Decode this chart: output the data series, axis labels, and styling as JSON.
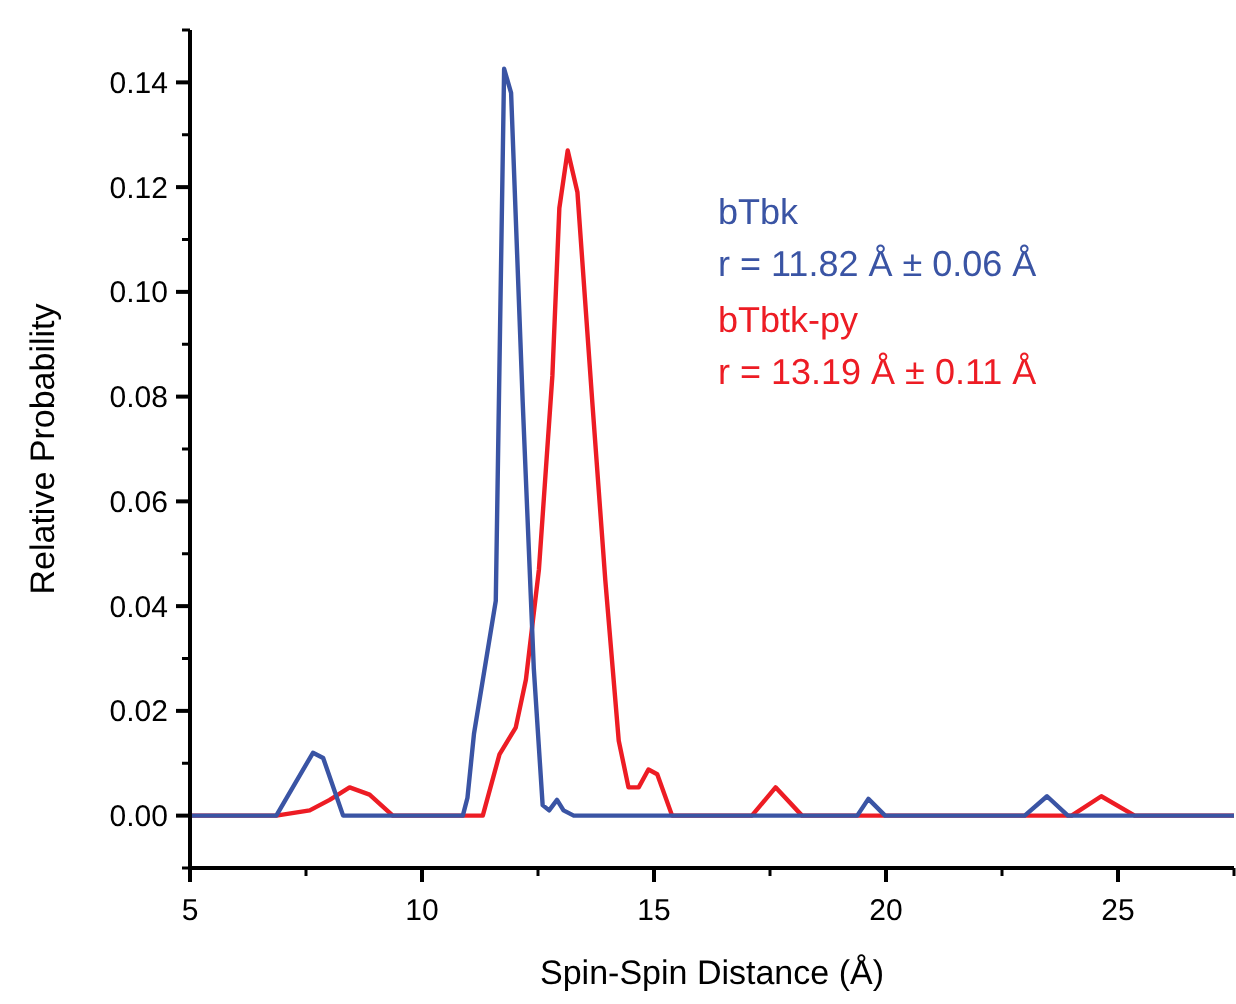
{
  "chart_data": {
    "type": "line",
    "xlabel": "Spin-Spin Distance (Å)",
    "ylabel": "Relative Probability",
    "xlim": [
      5,
      27.5
    ],
    "xticks": [
      5,
      10,
      15,
      20,
      25
    ],
    "ylim": [
      -0.01,
      0.15
    ],
    "yticks": [
      {
        "value": 0,
        "label": "0.00"
      },
      {
        "value": 0.02,
        "label": "0.02"
      },
      {
        "value": 0.04,
        "label": "0.04"
      },
      {
        "value": 0.06,
        "label": "0.06"
      },
      {
        "value": 0.08,
        "label": "0.08"
      },
      {
        "value": 0.1,
        "label": "0.10"
      },
      {
        "value": 0.12,
        "label": "0.12"
      },
      {
        "value": 0.14,
        "label": "0.14"
      }
    ],
    "grid": false,
    "marker": "none",
    "line_style": "solid",
    "annotations": [
      "r = 11.82 Å ± 0.06 Å",
      "r = 13.19 Å ± 0.11 Å"
    ],
    "series": [
      {
        "name": "bTbtk-py",
        "color": "#ed1c24",
        "x": [
          5,
          6.86,
          7.58,
          8.01,
          8.44,
          8.87,
          9.37,
          11.31,
          11.67,
          12.02,
          12.24,
          12.52,
          12.81,
          12.96,
          13.14,
          13.35,
          13.67,
          13.95,
          14.24,
          14.45,
          14.67,
          14.88,
          15.07,
          15.39,
          17.11,
          17.62,
          18.19,
          24.0,
          24.64,
          25.36,
          27.5
        ],
        "values": [
          0,
          0,
          0.001,
          0.003,
          0.0054,
          0.004,
          0,
          0,
          0.0117,
          0.0168,
          0.026,
          0.047,
          0.084,
          0.116,
          0.127,
          0.119,
          0.079,
          0.045,
          0.0143,
          0.0054,
          0.0054,
          0.0088,
          0.0079,
          0,
          0,
          0.0054,
          0,
          0,
          0.0037,
          0,
          0
        ]
      },
      {
        "name": "bTbk",
        "color": "#3a54a4",
        "x": [
          5,
          6.86,
          7.65,
          7.87,
          8.3,
          10.88,
          10.98,
          11.12,
          11.59,
          11.77,
          11.92,
          12.17,
          12.41,
          12.6,
          12.74,
          12.91,
          13.05,
          13.27,
          19.38,
          19.62,
          19.98,
          22.99,
          23.47,
          23.92,
          27.5
        ],
        "values": [
          0,
          0,
          0.012,
          0.011,
          0,
          0,
          0.0034,
          0.0156,
          0.041,
          0.1426,
          0.138,
          0.079,
          0.028,
          0.002,
          0.001,
          0.003,
          0.001,
          0,
          0,
          0.0032,
          0,
          0,
          0.0037,
          0,
          0
        ]
      }
    ]
  }
}
